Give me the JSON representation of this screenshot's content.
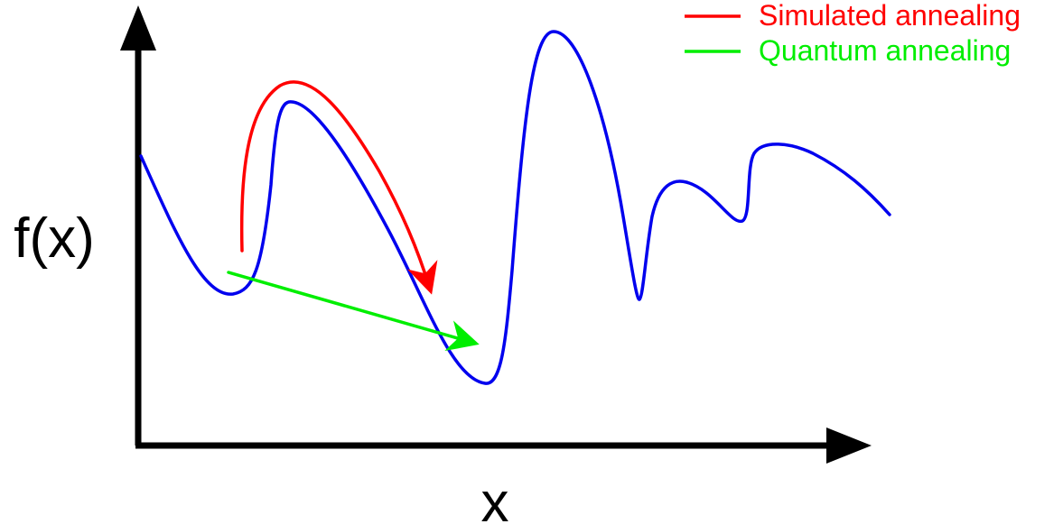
{
  "axes": {
    "x_label": "x",
    "y_label": "f(x)"
  },
  "legend": {
    "position": "top-right",
    "items": [
      {
        "label": "Simulated annealing",
        "color": "#ff0000"
      },
      {
        "label": "Quantum annealing",
        "color": "#00ee00"
      }
    ]
  },
  "colors": {
    "curve": "#0000ee",
    "axes": "#000000"
  }
}
